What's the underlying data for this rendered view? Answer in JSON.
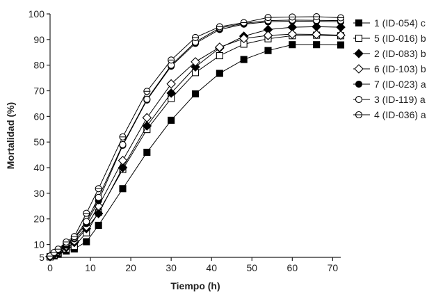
{
  "chart_data": {
    "type": "line",
    "title": "",
    "xlabel": "Tiempo (h)",
    "ylabel": "Mortalidad (%)",
    "xlim": [
      0,
      72
    ],
    "ylim": [
      5,
      100
    ],
    "x_ticks": [
      0,
      10,
      20,
      30,
      40,
      50,
      60,
      70
    ],
    "y_ticks": [
      5,
      10,
      20,
      30,
      40,
      50,
      60,
      70,
      80,
      90,
      100
    ],
    "grid": false,
    "legend_position": "right",
    "x": [
      0,
      1,
      2,
      4,
      6,
      9,
      12,
      18,
      24,
      30,
      36,
      42,
      48,
      54,
      60,
      66,
      72
    ],
    "series": [
      {
        "name": "1 (ID-054) c",
        "marker": "square-filled",
        "values": [
          5.2,
          5.6,
          6.2,
          7.5,
          8.3,
          11.1,
          17.5,
          31.8,
          46.0,
          58.5,
          68.8,
          76.8,
          82.2,
          85.7,
          88.0,
          88.0,
          87.9
        ]
      },
      {
        "name": "5 (ID-016) b",
        "marker": "square-open",
        "values": [
          5.2,
          5.9,
          6.8,
          8.3,
          9.3,
          14.6,
          22.6,
          39.3,
          54.9,
          67.0,
          77.1,
          83.7,
          88.2,
          90.3,
          91.5,
          91.7,
          91.5
        ]
      },
      {
        "name": "2 (ID-083) b",
        "marker": "diamond-filled",
        "values": [
          5.3,
          6.1,
          7.0,
          8.8,
          10.8,
          16.2,
          22.1,
          40.0,
          56.3,
          69.1,
          79.3,
          86.7,
          91.3,
          93.9,
          94.8,
          95.0,
          94.8
        ]
      },
      {
        "name": "6 (ID-103) b",
        "marker": "diamond-open",
        "values": [
          5.3,
          6.4,
          7.3,
          9.4,
          11.4,
          17.0,
          25.0,
          42.8,
          59.5,
          72.7,
          81.3,
          87.0,
          90.4,
          91.6,
          92.1,
          92.0,
          91.7
        ]
      },
      {
        "name": "7 (ID-023) a",
        "marker": "circle-filled",
        "values": [
          5.4,
          6.5,
          7.6,
          9.8,
          12.2,
          18.2,
          27.1,
          48.7,
          66.4,
          79.6,
          88.5,
          93.9,
          96.0,
          96.9,
          97.2,
          97.1,
          96.9
        ]
      },
      {
        "name": "3 (ID-119) a",
        "marker": "circle-open",
        "values": [
          5.5,
          6.8,
          8.0,
          10.4,
          12.6,
          19.0,
          28.4,
          49.0,
          66.7,
          80.0,
          89.0,
          94.5,
          96.3,
          97.4,
          97.6,
          97.5,
          97.4
        ]
      },
      {
        "name": "4 (ID-036) a",
        "marker": "circle-open-dot",
        "values": [
          5.5,
          6.9,
          8.2,
          11.0,
          13.1,
          22.2,
          31.8,
          52.0,
          69.8,
          82.0,
          90.8,
          95.0,
          96.6,
          98.6,
          98.8,
          98.9,
          98.5
        ]
      }
    ]
  }
}
